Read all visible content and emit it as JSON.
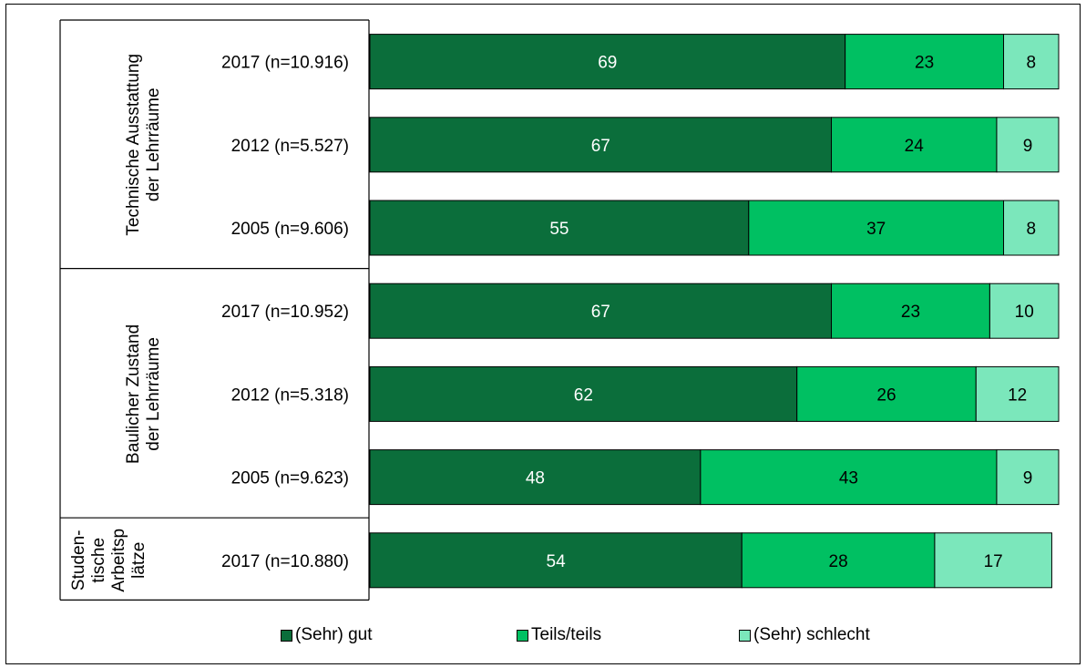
{
  "chart_data": {
    "type": "bar",
    "orientation": "horizontal",
    "stacked": true,
    "groups": [
      {
        "label": [
          "Technische Ausstattung",
          "der Lehrräume"
        ],
        "rows": [
          {
            "label": "2017 (n=10.916)",
            "values": [
              69,
              23,
              8
            ]
          },
          {
            "label": "2012 (n=5.527)",
            "values": [
              67,
              24,
              9
            ]
          },
          {
            "label": "2005 (n=9.606)",
            "values": [
              55,
              37,
              8
            ]
          }
        ]
      },
      {
        "label": [
          "Baulicher Zustand",
          "der Lehrräume"
        ],
        "rows": [
          {
            "label": "2017 (n=10.952)",
            "values": [
              67,
              23,
              10
            ]
          },
          {
            "label": "2012 (n=5.318)",
            "values": [
              62,
              26,
              12
            ]
          },
          {
            "label": "2005 (n=9.623)",
            "values": [
              48,
              43,
              9
            ]
          }
        ]
      },
      {
        "label": [
          "Studen-",
          "tische",
          "Arbeitsp",
          "lätze"
        ],
        "rows": [
          {
            "label": "2017 (n=10.880)",
            "values": [
              54,
              28,
              17
            ]
          }
        ]
      }
    ],
    "series": [
      {
        "name": "(Sehr) gut",
        "color": "#0b6e3b",
        "label_color": "#ffffff"
      },
      {
        "name": "Teils/teils",
        "color": "#00c062",
        "label_color": "#000000"
      },
      {
        "name": "(Sehr) schlecht",
        "color": "#7be7bb",
        "label_color": "#000000"
      }
    ],
    "xlim": [
      0,
      100
    ],
    "legend_position": "bottom",
    "grid": false
  }
}
